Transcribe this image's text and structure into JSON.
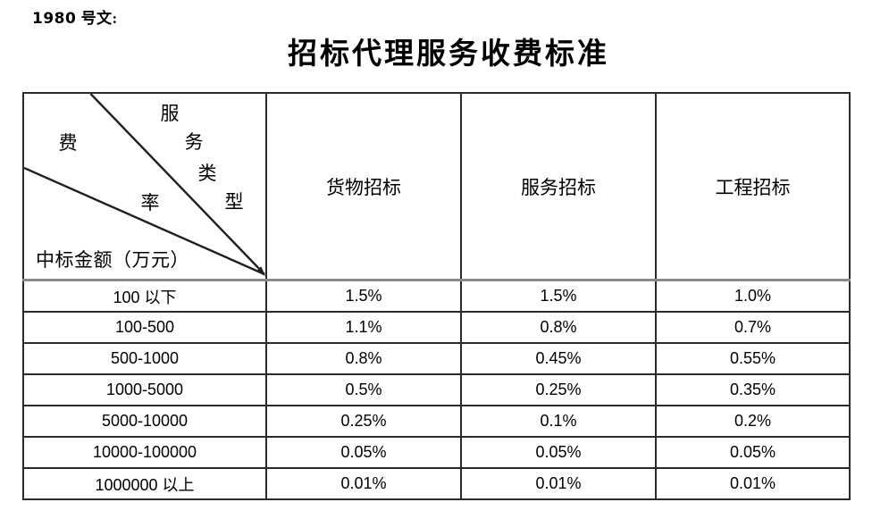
{
  "page": {
    "doc_ref_number": "1980",
    "doc_ref_label": "号文:",
    "title": "招标代理服务收费标准"
  },
  "table": {
    "corner": {
      "service_type_chars": [
        "服",
        "务",
        "类",
        "型"
      ],
      "rate_chars": [
        "费",
        "率"
      ],
      "amount_label": "中标金额（万元）"
    },
    "columns": [
      "货物招标",
      "服务招标",
      "工程招标"
    ],
    "rows": [
      {
        "range": "100 以下",
        "goods": "1.5%",
        "services": "1.5%",
        "works": "1.0%"
      },
      {
        "range": "100-500",
        "goods": "1.1%",
        "services": "0.8%",
        "works": "0.7%"
      },
      {
        "range": "500-1000",
        "goods": "0.8%",
        "services": "0.45%",
        "works": "0.55%"
      },
      {
        "range": "1000-5000",
        "goods": "0.5%",
        "services": "0.25%",
        "works": "0.35%"
      },
      {
        "range": "5000-10000",
        "goods": "0.25%",
        "services": "0.1%",
        "works": "0.2%"
      },
      {
        "range": "10000-100000",
        "goods": "0.05%",
        "services": "0.05%",
        "works": "0.05%"
      },
      {
        "range": "1000000 以上",
        "goods": "0.01%",
        "services": "0.01%",
        "works": "0.01%"
      }
    ]
  },
  "colors": {
    "text": "#000000",
    "border": "#2b2b2b",
    "header_rule": "#8a8a8a",
    "background": "#ffffff"
  }
}
